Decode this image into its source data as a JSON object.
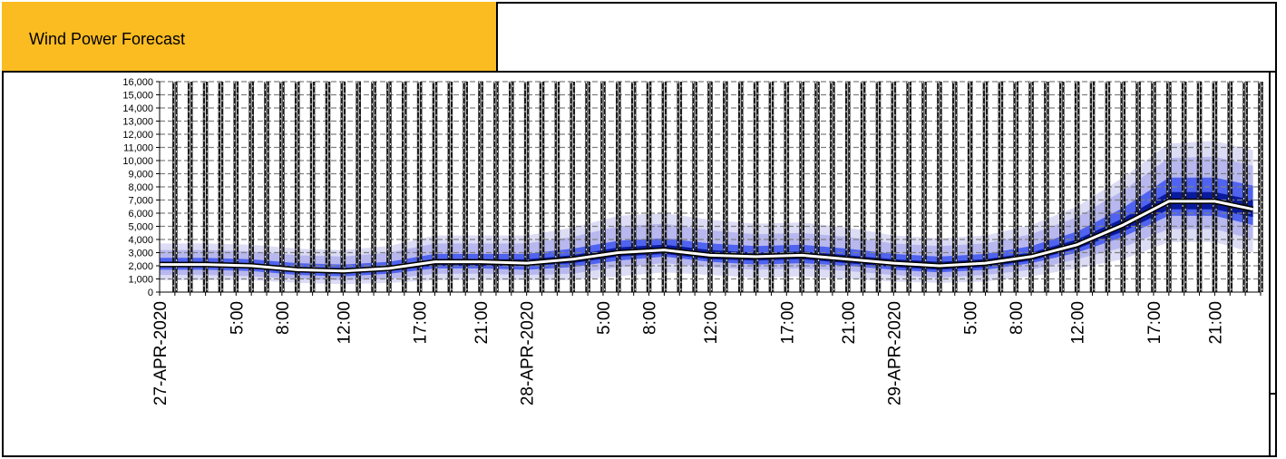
{
  "header": {
    "title": "Wind Power Forecast"
  },
  "colors": {
    "header_bg": "#fbbc22",
    "band_outer": "#dcdcf5",
    "band_mid": "#b8b8ef",
    "band_inner": "#4f63f0",
    "band_core": "#0a1a9c",
    "median": "#ffffff",
    "grid": "#808080"
  },
  "chart_data": {
    "type": "area",
    "title": "",
    "xlabel": "",
    "ylabel": "",
    "ylim": [
      0,
      16000
    ],
    "yticks": [
      0,
      1000,
      2000,
      3000,
      4000,
      5000,
      6000,
      7000,
      8000,
      9000,
      10000,
      11000,
      12000,
      13000,
      14000,
      15000,
      16000
    ],
    "ytick_labels": [
      "0",
      "1,000",
      "2,000",
      "3,000",
      "4,000",
      "5,000",
      "6,000",
      "7,000",
      "8,000",
      "9,000",
      "10,000",
      "11,000",
      "12,000",
      "13,000",
      "14,000",
      "15,000",
      "16,000"
    ],
    "x_labels": [
      {
        "hour": 0,
        "label": "27-APR-2020"
      },
      {
        "hour": 5,
        "label": "5:00"
      },
      {
        "hour": 8,
        "label": "8:00"
      },
      {
        "hour": 12,
        "label": "12:00"
      },
      {
        "hour": 17,
        "label": "17:00"
      },
      {
        "hour": 21,
        "label": "21:00"
      },
      {
        "hour": 24,
        "label": "28-APR-2020"
      },
      {
        "hour": 29,
        "label": "5:00"
      },
      {
        "hour": 32,
        "label": "8:00"
      },
      {
        "hour": 36,
        "label": "12:00"
      },
      {
        "hour": 41,
        "label": "17:00"
      },
      {
        "hour": 45,
        "label": "21:00"
      },
      {
        "hour": 48,
        "label": "29-APR-2020"
      },
      {
        "hour": 53,
        "label": "5:00"
      },
      {
        "hour": 56,
        "label": "8:00"
      },
      {
        "hour": 60,
        "label": "12:00"
      },
      {
        "hour": 65,
        "label": "17:00"
      },
      {
        "hour": 69,
        "label": "21:00"
      }
    ],
    "hours": [
      0,
      3,
      6,
      9,
      12,
      15,
      18,
      21,
      24,
      27,
      30,
      33,
      36,
      39,
      42,
      45,
      48,
      51,
      54,
      57,
      60,
      63,
      66,
      69,
      71.5
    ],
    "series": [
      {
        "values": [
          900,
          900,
          900,
          700,
          600,
          700,
          900,
          900,
          900,
          900,
          1200,
          1500,
          1300,
          1100,
          1200,
          1000,
          800,
          700,
          800,
          1200,
          1800,
          2500,
          3800,
          3800,
          3000
        ]
      },
      {
        "values": [
          1300,
          1300,
          1200,
          1000,
          900,
          1000,
          1400,
          1400,
          1300,
          1400,
          1900,
          2200,
          1900,
          1700,
          1800,
          1600,
          1300,
          1100,
          1300,
          1700,
          2500,
          3400,
          4800,
          4800,
          4000
        ]
      },
      {
        "values": [
          1700,
          1700,
          1600,
          1300,
          1200,
          1400,
          1800,
          1800,
          1700,
          1900,
          2400,
          2700,
          2300,
          2100,
          2200,
          2000,
          1700,
          1500,
          1700,
          2200,
          3000,
          4200,
          5800,
          5800,
          5100
        ]
      },
      {
        "values": [
          1900,
          1900,
          1800,
          1500,
          1400,
          1600,
          2000,
          2000,
          2000,
          2200,
          2700,
          2900,
          2500,
          2400,
          2500,
          2200,
          1900,
          1700,
          1900,
          2400,
          3300,
          4600,
          6300,
          6300,
          5700
        ]
      },
      {
        "values": [
          2100,
          2100,
          2000,
          1700,
          1600,
          1800,
          2300,
          2300,
          2200,
          2500,
          3000,
          3200,
          2800,
          2700,
          2800,
          2500,
          2200,
          2000,
          2200,
          2700,
          3600,
          5100,
          6900,
          6900,
          6300
        ]
      },
      {
        "values": [
          2300,
          2300,
          2200,
          1900,
          1800,
          2000,
          2500,
          2500,
          2500,
          2800,
          3400,
          3600,
          3200,
          3000,
          3100,
          2800,
          2500,
          2300,
          2500,
          3000,
          4000,
          5600,
          7600,
          7600,
          7000
        ]
      },
      {
        "values": [
          2600,
          2600,
          2500,
          2200,
          2100,
          2300,
          2900,
          2900,
          2900,
          3300,
          3900,
          4100,
          3700,
          3500,
          3600,
          3300,
          2900,
          2700,
          2900,
          3500,
          4600,
          6400,
          8700,
          8700,
          8100
        ]
      },
      {
        "values": [
          3200,
          3200,
          3100,
          2800,
          2700,
          3000,
          3700,
          3700,
          3700,
          4200,
          5000,
          5200,
          4700,
          4400,
          4500,
          4200,
          3700,
          3500,
          3700,
          4400,
          5700,
          7700,
          10200,
          10300,
          9600
        ]
      },
      {
        "values": [
          3700,
          3700,
          3600,
          3300,
          3200,
          3500,
          4300,
          4300,
          4300,
          4900,
          5800,
          6000,
          5500,
          5200,
          5300,
          4900,
          4300,
          4100,
          4300,
          5100,
          6500,
          8700,
          11300,
          11500,
          10800
        ]
      }
    ]
  }
}
